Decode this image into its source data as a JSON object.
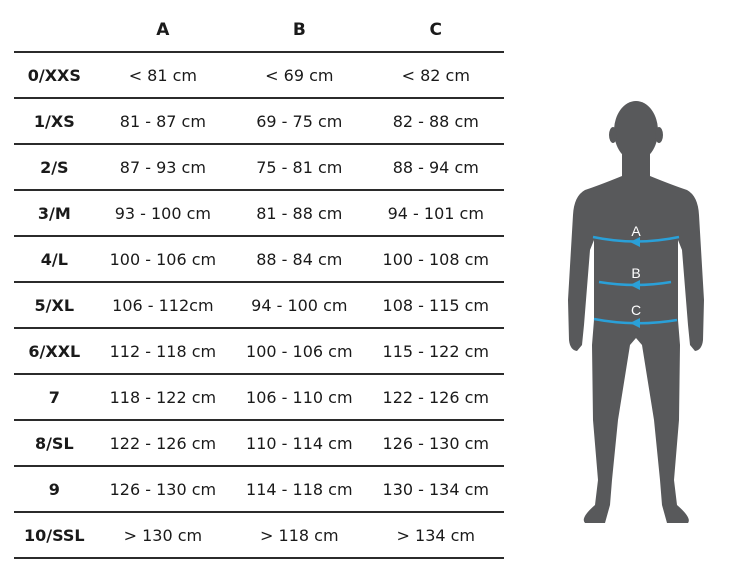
{
  "table": {
    "headers": [
      "",
      "A",
      "B",
      "C"
    ],
    "rows": [
      {
        "size": "0/XXS",
        "a": "< 81 cm",
        "b": "< 69 cm",
        "c": "< 82 cm"
      },
      {
        "size": "1/XS",
        "a": "81 - 87 cm",
        "b": "69 - 75 cm",
        "c": "82 - 88 cm"
      },
      {
        "size": "2/S",
        "a": "87 - 93 cm",
        "b": "75 - 81 cm",
        "c": "88 - 94 cm"
      },
      {
        "size": "3/M",
        "a": "93 - 100 cm",
        "b": "81 - 88 cm",
        "c": "94 - 101 cm"
      },
      {
        "size": "4/L",
        "a": "100 - 106 cm",
        "b": "88 - 84 cm",
        "c": "100 - 108 cm"
      },
      {
        "size": "5/XL",
        "a": "106 - 112cm",
        "b": "94 - 100 cm",
        "c": "108 - 115 cm"
      },
      {
        "size": "6/XXL",
        "a": "112 - 118 cm",
        "b": "100 - 106 cm",
        "c": "115 - 122 cm"
      },
      {
        "size": "7",
        "a": "118 - 122 cm",
        "b": "106 - 110 cm",
        "c": "122 - 126 cm"
      },
      {
        "size": "8/SL",
        "a": "122 - 126 cm",
        "b": "110 - 114 cm",
        "c": "126 - 130 cm"
      },
      {
        "size": "9",
        "a": "126 - 130 cm",
        "b": "114 - 118 cm",
        "c": "130 - 134 cm"
      },
      {
        "size": "10/SSL",
        "a": "> 130 cm",
        "b": "> 118 cm",
        "c": "> 134 cm"
      }
    ]
  },
  "figure": {
    "labels": [
      "A",
      "B",
      "C"
    ],
    "silhouette_color": "#58595b",
    "measure_color": "#2aa0d8"
  }
}
